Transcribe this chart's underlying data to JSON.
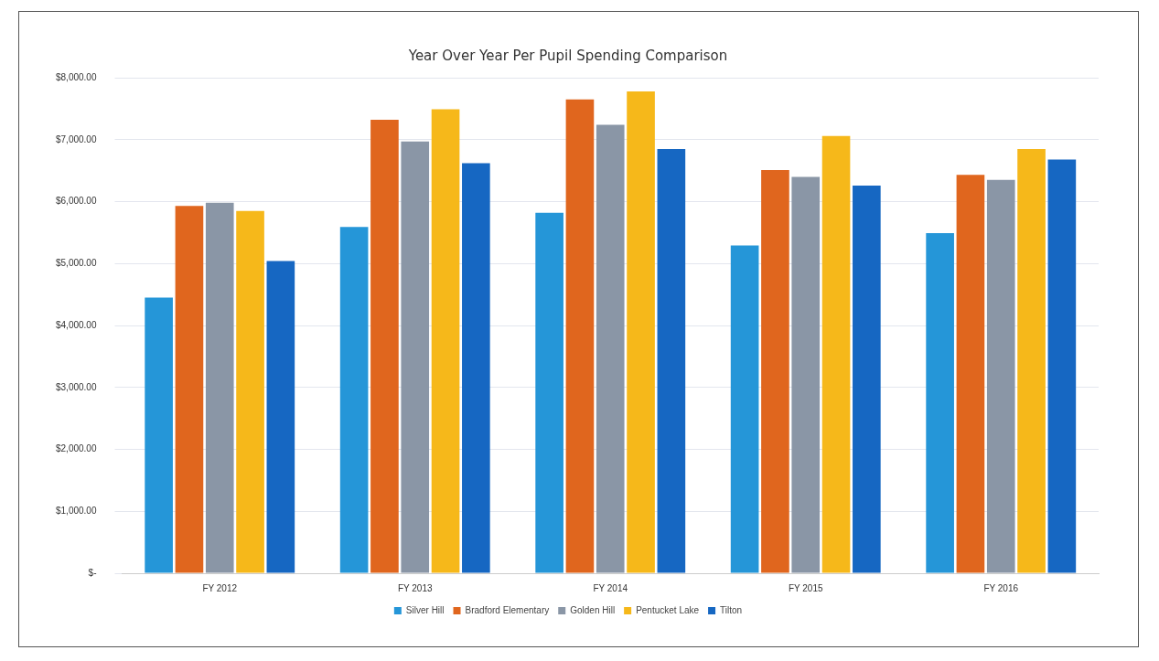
{
  "chart_data": {
    "type": "bar",
    "title": "Year Over Year Per Pupil Spending Comparison",
    "categories": [
      "FY 2012",
      "FY 2013",
      "FY 2014",
      "FY 2015",
      "FY 2016"
    ],
    "series": [
      {
        "name": "Silver Hill",
        "color": "#2596d8",
        "values": [
          4450,
          5590,
          5820,
          5290,
          5490
        ]
      },
      {
        "name": "Bradford Elementary",
        "color": "#e0661e",
        "values": [
          5930,
          7320,
          7650,
          6510,
          6430
        ]
      },
      {
        "name": "Golden Hill",
        "color": "#8a96a6",
        "values": [
          5980,
          6970,
          7240,
          6400,
          6350
        ]
      },
      {
        "name": "Pentucket Lake",
        "color": "#f6b81a",
        "values": [
          5850,
          7490,
          7780,
          7060,
          6850
        ]
      },
      {
        "name": "Tilton",
        "color": "#1667c2",
        "values": [
          5040,
          6620,
          6850,
          6260,
          6680
        ]
      }
    ],
    "ylim": [
      0,
      8000
    ],
    "yticks": [
      {
        "value": 0,
        "label": "$-"
      },
      {
        "value": 1000,
        "label": "$1,000.00"
      },
      {
        "value": 2000,
        "label": "$2,000.00"
      },
      {
        "value": 3000,
        "label": "$3,000.00"
      },
      {
        "value": 4000,
        "label": "$4,000.00"
      },
      {
        "value": 5000,
        "label": "$5,000.00"
      },
      {
        "value": 6000,
        "label": "$6,000.00"
      },
      {
        "value": 7000,
        "label": "$7,000.00"
      },
      {
        "value": 8000,
        "label": "$8,000.00"
      }
    ],
    "grid": "y",
    "legend": "bottom"
  }
}
